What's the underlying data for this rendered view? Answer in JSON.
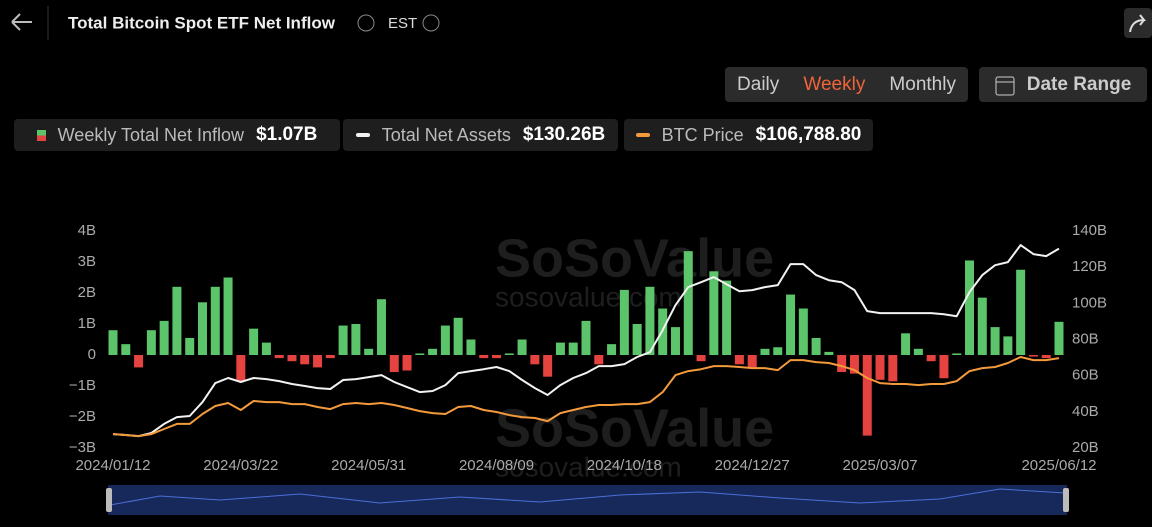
{
  "header": {
    "title": "Total Bitcoin Spot ETF Net Inflow",
    "timezone": "EST"
  },
  "controls": {
    "periods": [
      "Daily",
      "Weekly",
      "Monthly"
    ],
    "active_period": 1,
    "date_range": "Date Range"
  },
  "watermark": {
    "brand": "SoSoValue",
    "site": "sosovalue.com"
  },
  "chart_data": {
    "type": "bar",
    "categories": [
      "2024/01/12",
      null,
      null,
      null,
      null,
      null,
      null,
      null,
      null,
      null,
      "2024/03/22",
      null,
      null,
      null,
      null,
      null,
      null,
      null,
      null,
      null,
      "2024/05/31",
      null,
      null,
      null,
      null,
      null,
      null,
      null,
      null,
      null,
      "2024/08/09",
      null,
      null,
      null,
      null,
      null,
      null,
      null,
      null,
      null,
      "2024/10/18",
      null,
      null,
      null,
      null,
      null,
      null,
      null,
      null,
      null,
      "2024/12/27",
      null,
      null,
      null,
      null,
      null,
      null,
      null,
      null,
      null,
      "2025/03/07",
      null,
      null,
      null,
      null,
      null,
      null,
      null,
      null,
      null,
      null,
      null,
      null,
      null,
      "2025/06/12"
    ],
    "series": [
      {
        "name": "Weekly Total Net Inflow",
        "latest": "$1.07B",
        "type": "bar",
        "color": "#5cc46a",
        "negative_color": "#e4433f",
        "values": [
          0.8,
          0.35,
          -0.4,
          0.8,
          1.1,
          2.2,
          0.55,
          1.7,
          2.2,
          2.5,
          -0.85,
          0.85,
          0.4,
          -0.1,
          -0.2,
          -0.3,
          -0.4,
          -0.1,
          0.95,
          1.0,
          0.2,
          1.8,
          -0.55,
          -0.5,
          0.05,
          0.2,
          0.95,
          1.2,
          0.5,
          -0.1,
          -0.1,
          0.05,
          0.5,
          -0.3,
          -0.7,
          0.4,
          0.4,
          1.1,
          -0.3,
          0.35,
          2.1,
          1.0,
          2.2,
          1.5,
          0.9,
          3.35,
          -0.2,
          2.7,
          2.4,
          -0.3,
          -0.4,
          0.2,
          0.25,
          1.95,
          1.5,
          0.55,
          0.1,
          -0.55,
          -0.6,
          -2.6,
          -0.8,
          -0.85,
          0.7,
          0.2,
          -0.2,
          -0.75,
          0.05,
          3.05,
          1.85,
          0.9,
          0.6,
          2.75,
          -0.05,
          -0.1,
          1.07
        ]
      },
      {
        "name": "Total Net Assets",
        "latest": "$130.26B",
        "type": "line",
        "axis": "y2",
        "color": "#f2f2f2",
        "values": [
          27.7,
          27.2,
          26.6,
          28.3,
          33.3,
          37.1,
          37.7,
          45.4,
          55.9,
          58.7,
          56.5,
          58.7,
          58.1,
          57,
          55.4,
          54.3,
          53.1,
          52.6,
          57.6,
          58.1,
          59.2,
          60.3,
          56.5,
          53.7,
          50.9,
          51.5,
          54.8,
          61.4,
          62.5,
          63.6,
          64.8,
          62.5,
          57.6,
          53.1,
          49.3,
          54.8,
          58.7,
          61.4,
          65.3,
          65.3,
          66.4,
          70.3,
          73,
          85.2,
          99,
          109,
          111.7,
          114.5,
          110.6,
          106.7,
          107.3,
          109,
          110.1,
          121.7,
          121.7,
          115.6,
          112.8,
          111.7,
          107.3,
          95.7,
          94.6,
          94.6,
          94.6,
          94.6,
          94.6,
          94,
          92.9,
          106.2,
          115.6,
          121.1,
          122.8,
          132.2,
          127.2,
          126.1,
          130.26
        ]
      },
      {
        "name": "BTC Price",
        "latest": "$106,788.80",
        "type": "line",
        "axis": "y2",
        "color": "#f39a3c",
        "values": [
          27.7,
          27.2,
          26.6,
          27.7,
          30.5,
          33.3,
          33.3,
          38.8,
          43.2,
          44.9,
          41,
          46,
          45.4,
          45.4,
          44.3,
          44.3,
          42.7,
          41.5,
          44.3,
          44.9,
          44.3,
          44.9,
          43.8,
          42.1,
          40.4,
          39.3,
          38.8,
          42.7,
          43.2,
          41,
          39.9,
          38.2,
          37.1,
          36.6,
          34.9,
          39.3,
          41,
          42.7,
          43.8,
          43.8,
          44.3,
          44.3,
          45.4,
          50.9,
          60.3,
          62.5,
          63.6,
          65.3,
          65.3,
          64.8,
          64.2,
          64.2,
          63.1,
          68.6,
          68.6,
          67.5,
          67,
          65.3,
          63.1,
          58.7,
          55.9,
          55.4,
          55.4,
          54.8,
          55.4,
          55.4,
          57,
          62.5,
          64.2,
          64.8,
          67,
          70.3,
          68.6,
          68.6,
          69.7
        ]
      }
    ],
    "ylim": [
      -3,
      4
    ],
    "yticks": [
      {
        "value": 4,
        "label": "4B"
      },
      {
        "value": 3,
        "label": "3B"
      },
      {
        "value": 2,
        "label": "2B"
      },
      {
        "value": 1,
        "label": "1B"
      },
      0,
      {
        "value": -1,
        "label": "−1B"
      },
      {
        "value": -2,
        "label": "−2B"
      },
      {
        "value": -3,
        "label": "−3B"
      }
    ],
    "y2lim": [
      20,
      140
    ],
    "y2ticks": [
      {
        "value": 140,
        "label": "140B"
      },
      {
        "value": 120,
        "label": "120B"
      },
      {
        "value": 100,
        "label": "100B"
      },
      {
        "value": 80,
        "label": "80B"
      },
      {
        "value": 60,
        "label": "60B"
      },
      {
        "value": 40,
        "label": "40B"
      },
      {
        "value": 20,
        "label": "20B"
      }
    ],
    "grid": false
  }
}
